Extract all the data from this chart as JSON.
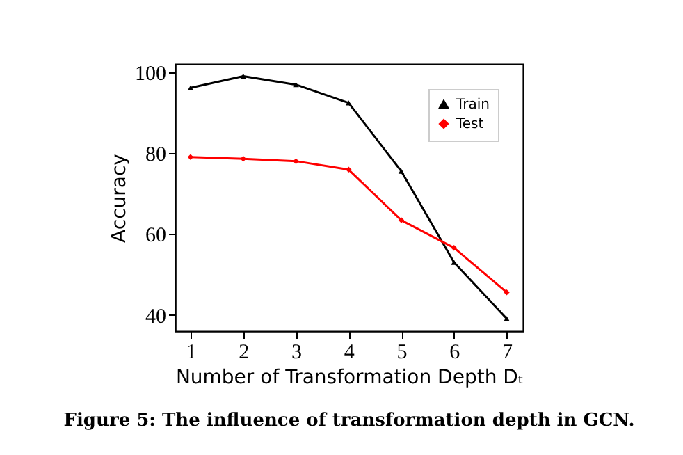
{
  "chart_data": {
    "type": "line",
    "title": "Figure 5: The influence of transformation depth in GCN.",
    "xlabel": "Number of Transformation Depth Dₜ",
    "ylabel": "Accuracy",
    "x": [
      1,
      2,
      3,
      4,
      5,
      6,
      7
    ],
    "series": [
      {
        "name": "Train",
        "color": "#000000",
        "marker": "triangle",
        "values": [
          96.1,
          99,
          96.9,
          92.4,
          75.5,
          53,
          39.1
        ]
      },
      {
        "name": "Test",
        "color": "#ff0000",
        "marker": "diamond",
        "values": [
          79,
          78.6,
          78,
          75.9,
          63.4,
          56.6,
          45.6
        ]
      }
    ],
    "xlim": [
      0.71,
      7.31
    ],
    "xticks": [
      1,
      2,
      3,
      4,
      5,
      6,
      7
    ],
    "ylim": [
      36,
      102
    ],
    "yticks": [
      40,
      60,
      80,
      100
    ],
    "grid": false,
    "legend": "top right",
    "line_style": "solid"
  }
}
